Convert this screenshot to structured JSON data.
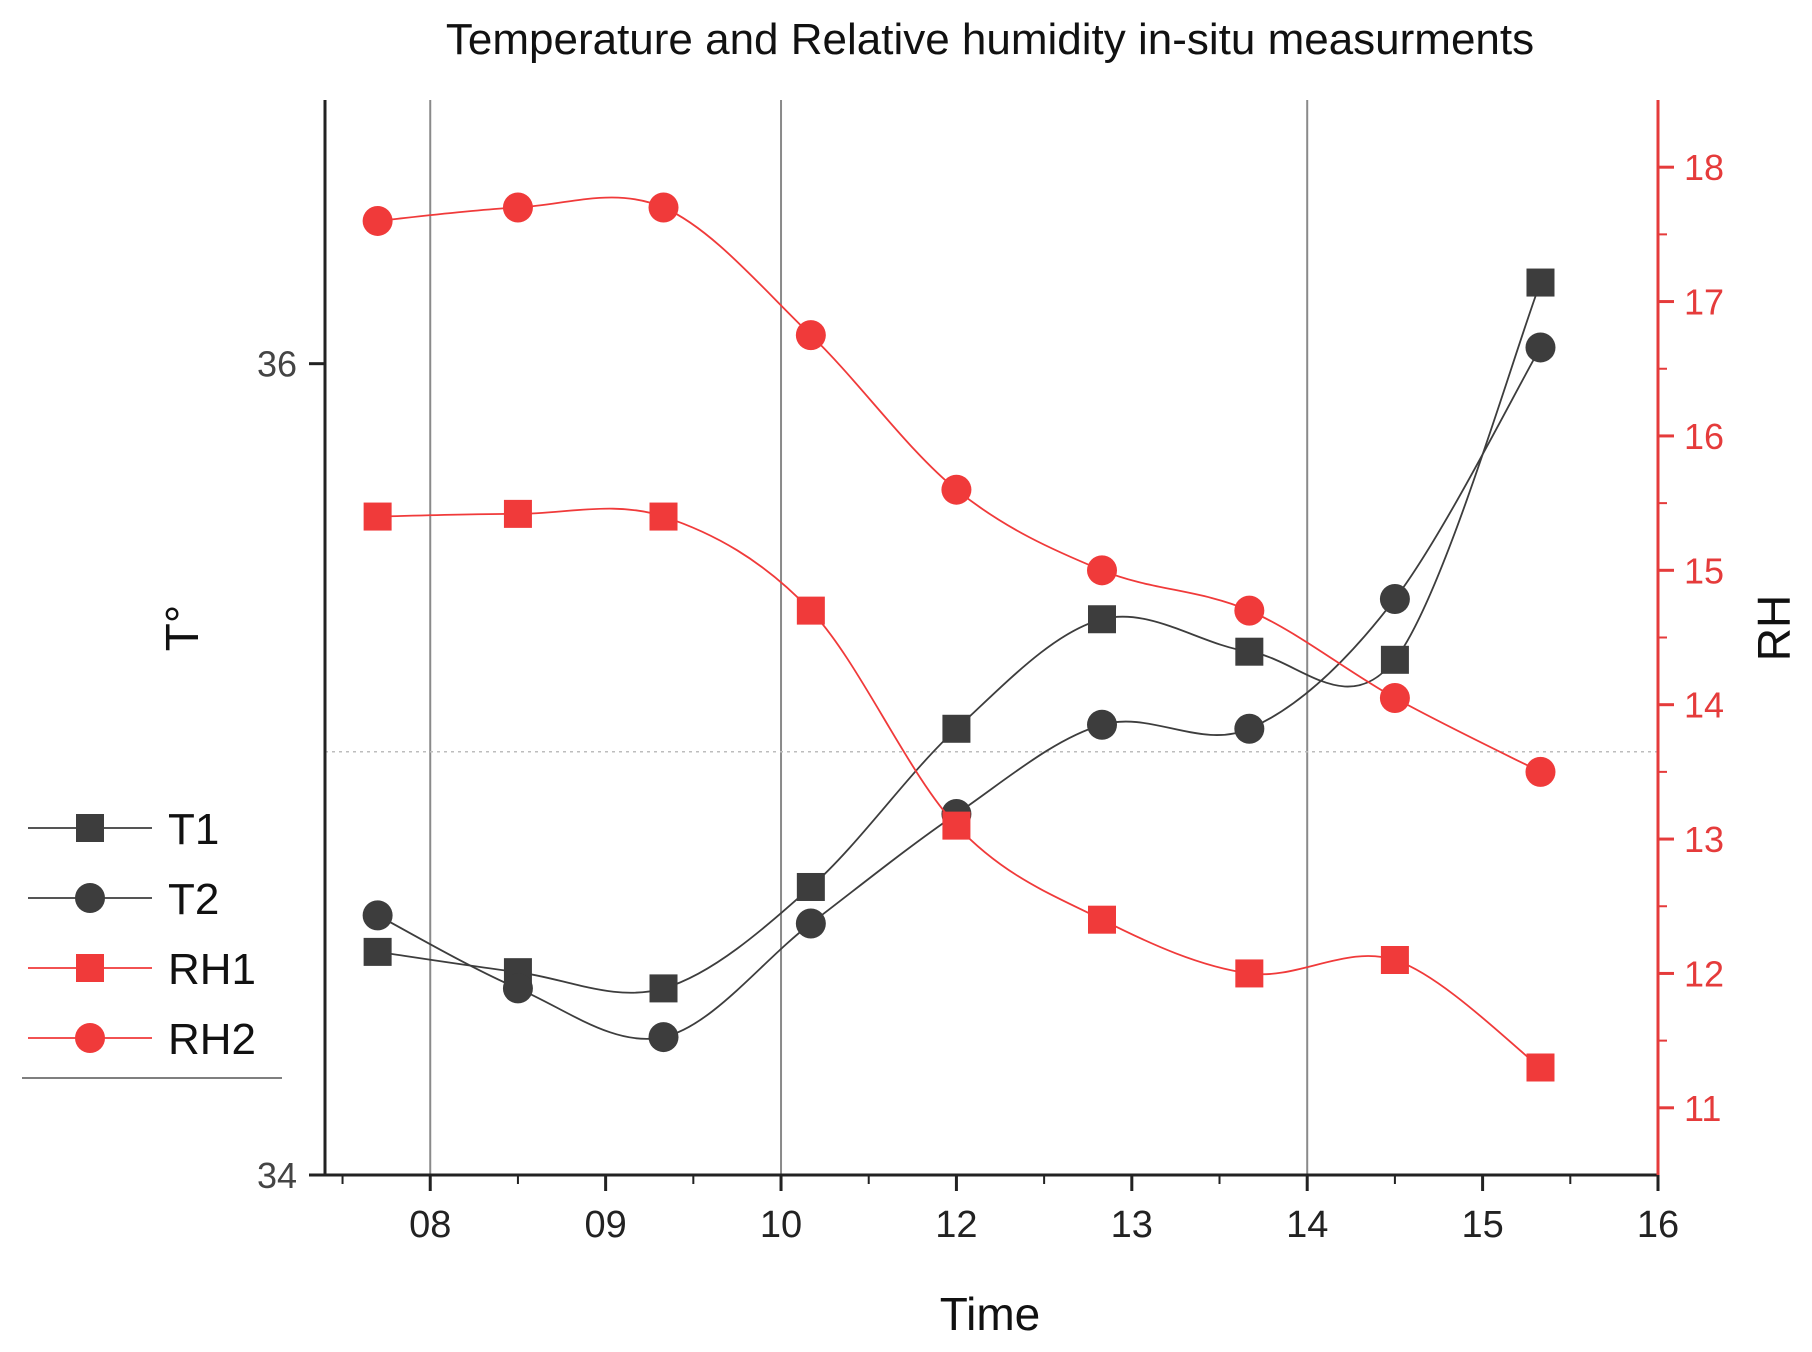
{
  "colors": {
    "t_series": "#3d3d3d",
    "rh_series": "#f03a3a",
    "rh_axis": "#e53b3b",
    "grid": "#8a8a8a"
  },
  "chart_data": {
    "type": "line",
    "title": "Temperature and Relative humidity in-situ measurments",
    "xlabel": "Time",
    "ylabel": "T°",
    "y2label": "RH",
    "x_ticks": [
      {
        "value": 8,
        "label": "08"
      },
      {
        "value": 9,
        "label": "09"
      },
      {
        "value": 10,
        "label": "10"
      },
      {
        "value": 11,
        "label": "12"
      },
      {
        "value": 12,
        "label": "13"
      },
      {
        "value": 13,
        "label": "14"
      },
      {
        "value": 14,
        "label": "15"
      },
      {
        "value": 15,
        "label": "16"
      }
    ],
    "xlim": [
      7.4,
      15.0
    ],
    "ylim": [
      34,
      36.65
    ],
    "y_ticks": [
      34,
      36
    ],
    "y2lim": [
      10.5,
      18.5
    ],
    "y2_ticks": [
      11,
      12,
      13,
      14,
      15,
      16,
      17,
      18
    ],
    "vertical_gridlines_x": [
      8,
      10,
      13
    ],
    "horizontal_reference_y2": 13.65,
    "legend_position": "left",
    "series": [
      {
        "name": "T1",
        "axis": "left",
        "marker": "square",
        "x": [
          7.7,
          8.5,
          9.33,
          10.17,
          11.0,
          11.83,
          12.67,
          13.5,
          14.33
        ],
        "values": [
          34.55,
          34.5,
          34.46,
          34.71,
          35.1,
          35.37,
          35.29,
          35.27,
          36.2
        ]
      },
      {
        "name": "T2",
        "axis": "left",
        "marker": "circle",
        "x": [
          7.7,
          8.5,
          9.33,
          10.17,
          11.0,
          11.83,
          12.67,
          13.5,
          14.33
        ],
        "values": [
          34.64,
          34.46,
          34.34,
          34.62,
          34.89,
          35.11,
          35.1,
          35.42,
          36.04
        ]
      },
      {
        "name": "RH1",
        "axis": "right",
        "marker": "square",
        "x": [
          7.7,
          8.5,
          9.33,
          10.17,
          11.0,
          11.83,
          12.67,
          13.5,
          14.33
        ],
        "values": [
          15.4,
          15.42,
          15.4,
          14.7,
          13.1,
          12.4,
          12.0,
          12.1,
          11.3
        ]
      },
      {
        "name": "RH2",
        "axis": "right",
        "marker": "circle",
        "x": [
          7.7,
          8.5,
          9.33,
          10.17,
          11.0,
          11.83,
          12.67,
          13.5,
          14.33
        ],
        "values": [
          17.6,
          17.7,
          17.7,
          16.75,
          15.6,
          15.0,
          14.7,
          14.05,
          13.5
        ]
      }
    ]
  }
}
